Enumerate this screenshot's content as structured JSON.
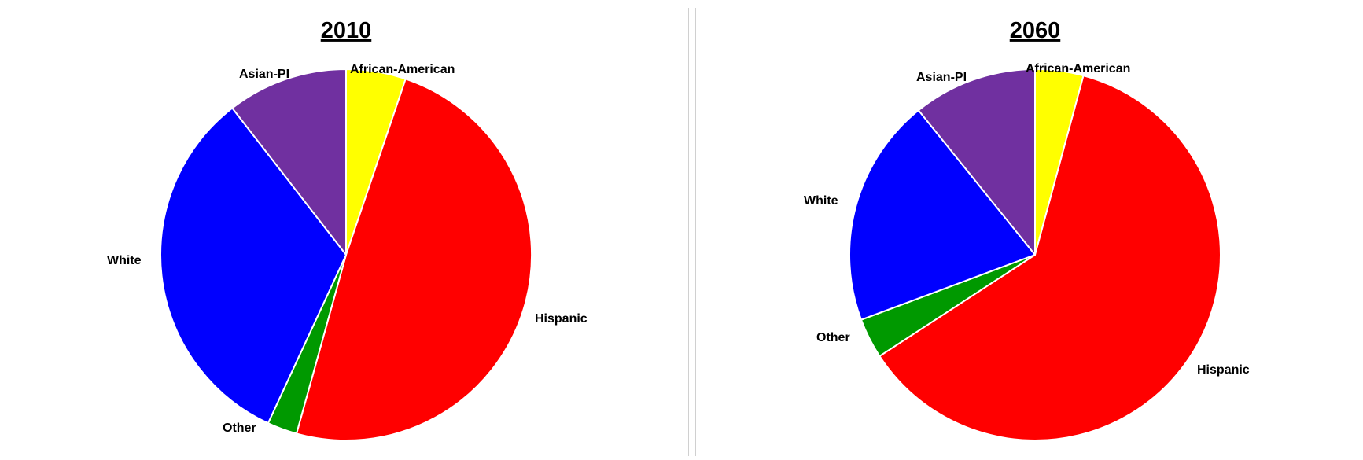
{
  "chart_data": [
    {
      "type": "pie",
      "title": "2010",
      "slices": [
        {
          "label": "African-American",
          "value": 5.2,
          "color": "#ffff00"
        },
        {
          "label": "Hispanic",
          "value": 49.1,
          "color": "#ff0000"
        },
        {
          "label": "Other",
          "value": 2.6,
          "color": "#009900"
        },
        {
          "label": "White",
          "value": 32.6,
          "color": "#0000ff"
        },
        {
          "label": "Asian-PI",
          "value": 10.5,
          "color": "#7030a0"
        }
      ]
    },
    {
      "type": "pie",
      "title": "2060",
      "slices": [
        {
          "label": "African-American",
          "value": 4.2,
          "color": "#ffff00"
        },
        {
          "label": "Hispanic",
          "value": 61.6,
          "color": "#ff0000"
        },
        {
          "label": "Other",
          "value": 3.5,
          "color": "#009900"
        },
        {
          "label": "White",
          "value": 19.9,
          "color": "#0000ff"
        },
        {
          "label": "Asian-PI",
          "value": 10.8,
          "color": "#7030a0"
        }
      ]
    }
  ]
}
